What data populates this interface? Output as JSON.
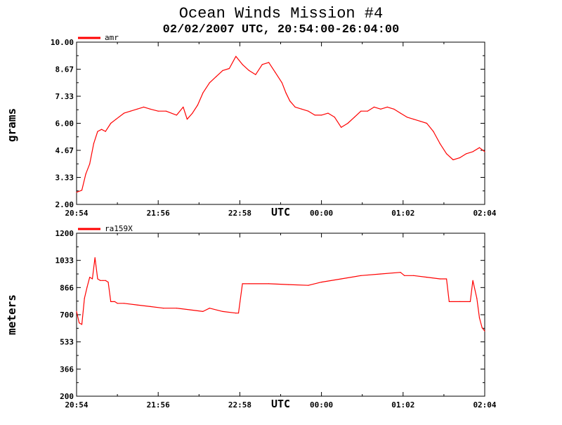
{
  "title": "Ocean Winds Mission #4",
  "subtitle": "02/02/2007  UTC, 20:54:00-26:04:00",
  "colors": {
    "series": "#ff0000",
    "axis": "#000000",
    "background": "#ffffff"
  },
  "chart_data": [
    {
      "type": "line",
      "xlabel": "UTC",
      "ylabel": "grams",
      "xlim": [
        "20:54",
        "26:04"
      ],
      "ylim": [
        2.0,
        10.0
      ],
      "xtick_labels": [
        "20:54",
        "21:56",
        "22:58",
        "00:00",
        "01:02",
        "02:04"
      ],
      "ytick_labels": [
        "2.00",
        "3.33",
        "4.67",
        "6.00",
        "7.33",
        "8.67",
        "10.00"
      ],
      "grid": false,
      "legend": "top-left",
      "series": [
        {
          "name": "amr",
          "x": [
            "20:54",
            "20:58",
            "21:01",
            "21:04",
            "21:07",
            "21:10",
            "21:13",
            "21:16",
            "21:20",
            "21:24",
            "21:30",
            "21:35",
            "21:40",
            "21:45",
            "21:50",
            "21:56",
            "22:02",
            "22:10",
            "22:15",
            "22:18",
            "22:22",
            "22:26",
            "22:30",
            "22:35",
            "22:40",
            "22:45",
            "22:50",
            "22:55",
            "23:00",
            "23:05",
            "23:10",
            "23:15",
            "23:20",
            "23:25",
            "23:30",
            "23:33",
            "23:36",
            "23:40",
            "23:45",
            "23:50",
            "23:55",
            "00:00",
            "00:05",
            "00:10",
            "00:15",
            "00:20",
            "00:25",
            "00:30",
            "00:35",
            "00:40",
            "00:45",
            "00:50",
            "00:55",
            "01:00",
            "01:05",
            "01:10",
            "01:15",
            "01:20",
            "01:25",
            "01:30",
            "01:35",
            "01:40",
            "01:45",
            "01:50",
            "01:55",
            "02:00",
            "02:04"
          ],
          "values": [
            2.6,
            2.7,
            3.5,
            4.0,
            5.0,
            5.6,
            5.7,
            5.6,
            6.0,
            6.2,
            6.5,
            6.6,
            6.7,
            6.8,
            6.7,
            6.6,
            6.6,
            6.4,
            6.8,
            6.2,
            6.5,
            6.9,
            7.5,
            8.0,
            8.3,
            8.6,
            8.7,
            9.3,
            8.9,
            8.6,
            8.4,
            8.9,
            9.0,
            8.5,
            8.0,
            7.5,
            7.1,
            6.8,
            6.7,
            6.6,
            6.4,
            6.4,
            6.5,
            6.3,
            5.8,
            6.0,
            6.3,
            6.6,
            6.6,
            6.8,
            6.7,
            6.8,
            6.7,
            6.5,
            6.3,
            6.2,
            6.1,
            6.0,
            5.6,
            5.0,
            4.5,
            4.2,
            4.3,
            4.5,
            4.6,
            4.8,
            4.6
          ]
        }
      ]
    },
    {
      "type": "line",
      "xlabel": "UTC",
      "ylabel": "meters",
      "xlim": [
        "20:54",
        "26:04"
      ],
      "ylim": [
        200,
        1200
      ],
      "xtick_labels": [
        "20:54",
        "21:56",
        "22:58",
        "00:00",
        "01:02",
        "02:04"
      ],
      "ytick_labels": [
        "200",
        "366",
        "533",
        "700",
        "866",
        "1033",
        "1200"
      ],
      "grid": false,
      "legend": "top-left",
      "series": [
        {
          "name": "ra159X",
          "x": [
            "20:54",
            "20:56",
            "20:58",
            "21:00",
            "21:02",
            "21:04",
            "21:06",
            "21:08",
            "21:10",
            "21:12",
            "21:14",
            "21:16",
            "21:18",
            "21:20",
            "21:23",
            "21:25",
            "21:30",
            "21:40",
            "21:50",
            "22:00",
            "22:10",
            "22:20",
            "22:30",
            "22:35",
            "22:45",
            "22:55",
            "22:57",
            "23:00",
            "23:05",
            "23:20",
            "23:35",
            "23:50",
            "00:00",
            "00:15",
            "00:30",
            "00:45",
            "01:00",
            "01:03",
            "01:10",
            "01:20",
            "01:30",
            "01:35",
            "01:37",
            "01:45",
            "01:53",
            "01:55",
            "01:58",
            "02:00",
            "02:02",
            "02:04"
          ],
          "values": [
            720,
            650,
            640,
            800,
            870,
            930,
            920,
            1050,
            920,
            910,
            910,
            910,
            900,
            780,
            780,
            770,
            770,
            760,
            750,
            740,
            740,
            730,
            720,
            740,
            720,
            710,
            710,
            890,
            890,
            890,
            885,
            880,
            900,
            920,
            940,
            950,
            960,
            940,
            940,
            930,
            920,
            920,
            780,
            780,
            780,
            910,
            800,
            680,
            620,
            600
          ]
        }
      ]
    }
  ]
}
